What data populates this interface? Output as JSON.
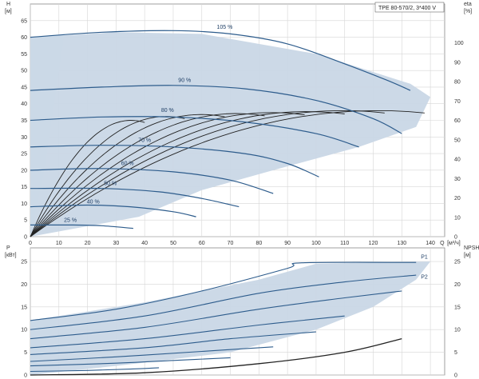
{
  "title": "TPE 80-570/2, 3*400 V",
  "colors": {
    "envelope": "#c9d7e6",
    "curve": "#2d5c8c",
    "eff": "#222222",
    "grid": "#d6d6d6",
    "light": "#e7f0f8"
  },
  "chart_data": [
    {
      "type": "line",
      "title": "TPE 80-570/2, 3*400 V",
      "ylabel": "H",
      "yunit": "[м]",
      "y2label": "eta",
      "y2unit": "[%]",
      "xlabel": "Q",
      "xunit": "[м³/ч]",
      "xlim": [
        0,
        145
      ],
      "ylim": [
        0,
        70
      ],
      "y2lim": [
        0,
        120
      ],
      "xticks": [
        "0",
        "10",
        "20",
        "30",
        "40",
        "50",
        "60",
        "70",
        "80",
        "90",
        "100",
        "110",
        "120",
        "130",
        "140"
      ],
      "yticks": [
        "0",
        "5",
        "10",
        "15",
        "20",
        "25",
        "30",
        "35",
        "40",
        "45",
        "50",
        "55",
        "60",
        "65"
      ],
      "y2ticks": [
        "0",
        "10",
        "20",
        "30",
        "40",
        "50",
        "60",
        "70",
        "80",
        "90",
        "100"
      ],
      "grid": true,
      "envelope": [
        [
          0,
          0
        ],
        [
          0,
          60
        ],
        [
          30,
          61.5
        ],
        [
          60,
          61
        ],
        [
          100,
          55
        ],
        [
          133,
          46
        ],
        [
          140,
          42
        ],
        [
          135,
          33
        ],
        [
          115,
          27
        ],
        [
          85,
          20
        ],
        [
          60,
          14
        ],
        [
          38,
          6
        ],
        [
          0,
          0
        ]
      ],
      "series": [
        {
          "label": "105 %",
          "points": [
            [
              0,
              60
            ],
            [
              25,
              61.5
            ],
            [
              50,
              62
            ],
            [
              70,
              61
            ],
            [
              90,
              58
            ],
            [
              110,
              52
            ],
            [
              125,
              47
            ],
            [
              133,
              44
            ]
          ]
        },
        {
          "label": "90 %",
          "points": [
            [
              0,
              44
            ],
            [
              25,
              45
            ],
            [
              50,
              45.5
            ],
            [
              75,
              44.5
            ],
            [
              100,
              41
            ],
            [
              120,
              35.5
            ],
            [
              130,
              31
            ]
          ]
        },
        {
          "label": "80 %",
          "points": [
            [
              0,
              35
            ],
            [
              25,
              36
            ],
            [
              50,
              36
            ],
            [
              75,
              34.5
            ],
            [
              100,
              31
            ],
            [
              115,
              27
            ]
          ]
        },
        {
          "label": "70 %",
          "points": [
            [
              0,
              27
            ],
            [
              25,
              27.5
            ],
            [
              50,
              27
            ],
            [
              75,
              25
            ],
            [
              90,
              22
            ],
            [
              101,
              18
            ]
          ]
        },
        {
          "label": "60 %",
          "points": [
            [
              0,
              20
            ],
            [
              25,
              20.5
            ],
            [
              50,
              19.5
            ],
            [
              70,
              17
            ],
            [
              85,
              13
            ]
          ]
        },
        {
          "label": "50 %",
          "points": [
            [
              0,
              14.5
            ],
            [
              25,
              14.5
            ],
            [
              45,
              13.5
            ],
            [
              60,
              11.5
            ],
            [
              73,
              9
            ]
          ]
        },
        {
          "label": "40 %",
          "points": [
            [
              0,
              9
            ],
            [
              20,
              9.5
            ],
            [
              35,
              9
            ],
            [
              50,
              7.5
            ],
            [
              58,
              6
            ]
          ]
        },
        {
          "label": "25 %",
          "points": [
            [
              0,
              3.5
            ],
            [
              15,
              3.5
            ],
            [
              25,
              3.3
            ],
            [
              36,
              2.5
            ]
          ]
        }
      ],
      "labels": [
        {
          "text": "105 %",
          "q": 68,
          "h": 62.5
        },
        {
          "text": "90 %",
          "q": 54,
          "h": 46.5
        },
        {
          "text": "80 %",
          "q": 48,
          "h": 37.5
        },
        {
          "text": "70 %",
          "q": 40,
          "h": 28.5
        },
        {
          "text": "60 %",
          "q": 34,
          "h": 21.5
        },
        {
          "text": "50 %",
          "q": 28,
          "h": 15.5
        },
        {
          "text": "40 %",
          "q": 22,
          "h": 10
        },
        {
          "text": "25 %",
          "q": 14,
          "h": 4.5
        }
      ],
      "eta_curves": [
        {
          "scale": 138,
          "peak": 65
        },
        {
          "scale": 124,
          "peak": 65
        },
        {
          "scale": 110,
          "peak": 64.5
        },
        {
          "scale": 96,
          "peak": 64
        },
        {
          "scale": 82,
          "peak": 63.5
        },
        {
          "scale": 68,
          "peak": 63
        },
        {
          "scale": 54,
          "peak": 62
        },
        {
          "scale": 40,
          "peak": 60
        }
      ]
    },
    {
      "type": "line",
      "ylabel": "P",
      "yunit": "[кВт]",
      "y2label": "NPSH",
      "y2unit": "[м]",
      "xlim": [
        0,
        145
      ],
      "ylim": [
        0,
        28
      ],
      "y2lim": [
        0,
        28
      ],
      "yticks": [
        "0",
        "5",
        "10",
        "15",
        "20",
        "25"
      ],
      "y2ticks": [
        "0",
        "5",
        "10",
        "15",
        "20",
        "25"
      ],
      "grid": true,
      "envelope": [
        [
          0,
          0
        ],
        [
          0,
          12
        ],
        [
          40,
          16
        ],
        [
          80,
          21
        ],
        [
          100,
          24.5
        ],
        [
          140,
          25
        ],
        [
          135,
          21
        ],
        [
          120,
          15
        ],
        [
          100,
          10
        ],
        [
          70,
          5
        ],
        [
          30,
          2
        ],
        [
          0,
          0
        ]
      ],
      "series": [
        {
          "label": "P1",
          "points": [
            [
              0,
              12
            ],
            [
              30,
              14.5
            ],
            [
              60,
              18.5
            ],
            [
              90,
              23.5
            ],
            [
              95,
              24.7
            ],
            [
              135,
              24.8
            ]
          ]
        },
        {
          "label": "P2",
          "points": [
            [
              0,
              10
            ],
            [
              40,
              13
            ],
            [
              80,
              18
            ],
            [
              110,
              20.5
            ],
            [
              135,
              22
            ]
          ]
        },
        {
          "points": [
            [
              0,
              8
            ],
            [
              40,
              10.5
            ],
            [
              80,
              14.5
            ],
            [
              110,
              17
            ],
            [
              130,
              18.5
            ]
          ]
        },
        {
          "points": [
            [
              0,
              6
            ],
            [
              40,
              8
            ],
            [
              80,
              11
            ],
            [
              110,
              13
            ]
          ]
        },
        {
          "points": [
            [
              0,
              4.5
            ],
            [
              40,
              6
            ],
            [
              70,
              8
            ],
            [
              100,
              9.5
            ]
          ]
        },
        {
          "points": [
            [
              0,
              3
            ],
            [
              30,
              4
            ],
            [
              60,
              5.2
            ],
            [
              85,
              6.2
            ]
          ]
        },
        {
          "points": [
            [
              0,
              2
            ],
            [
              30,
              2.6
            ],
            [
              50,
              3.2
            ],
            [
              70,
              3.8
            ]
          ]
        },
        {
          "points": [
            [
              0,
              0.8
            ],
            [
              20,
              1
            ],
            [
              35,
              1.3
            ],
            [
              45,
              1.6
            ]
          ]
        }
      ],
      "npsh": [
        [
          0,
          0
        ],
        [
          40,
          0.5
        ],
        [
          80,
          2.5
        ],
        [
          110,
          5
        ],
        [
          130,
          8
        ]
      ],
      "labels": [
        {
          "text": "P1",
          "q": 135,
          "h": 25.6
        },
        {
          "text": "P2",
          "q": 135,
          "h": 21.2
        }
      ]
    }
  ]
}
